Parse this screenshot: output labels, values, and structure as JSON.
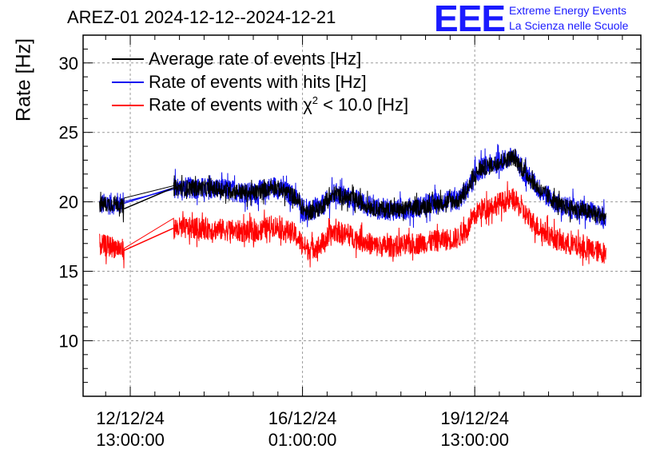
{
  "title": "AREZ-01 2024-12-12--2024-12-21",
  "logo": {
    "text": "EEE",
    "line1": "Extreme Energy Events",
    "line2": "La Scienza nelle Scuole",
    "color": "#1a1aff"
  },
  "chart_data": {
    "type": "line",
    "ylabel": "Rate [Hz]",
    "xlabel": "",
    "ylim": [
      6,
      32
    ],
    "yticks": [
      10,
      15,
      20,
      25,
      30
    ],
    "x_range_hours": [
      -23,
      249
    ],
    "x_major_ticks": [
      {
        "hours": 0,
        "label_date": "12/12/24",
        "label_time": "13:00:00"
      },
      {
        "hours": 84,
        "label_date": "16/12/24",
        "label_time": "01:00:00"
      },
      {
        "hours": 168,
        "label_date": "19/12/24",
        "label_time": "13:00:00"
      }
    ],
    "x_origin": "2024-12-12 13:00:00",
    "grid": true,
    "legend_position": "top-left",
    "series": [
      {
        "name": "Average rate of events [Hz]",
        "color": "#000000",
        "noise": 0.6,
        "points": [
          [
            -15,
            19.8
          ],
          [
            -6,
            19.9
          ],
          [
            -3,
            19.5
          ],
          [
            21,
            21.0
          ],
          [
            30,
            21.0
          ],
          [
            45,
            20.9
          ],
          [
            60,
            20.6
          ],
          [
            70,
            21.1
          ],
          [
            80,
            20.4
          ],
          [
            86,
            19.2
          ],
          [
            92,
            19.5
          ],
          [
            100,
            20.6
          ],
          [
            110,
            20.1
          ],
          [
            120,
            19.5
          ],
          [
            130,
            19.4
          ],
          [
            140,
            19.6
          ],
          [
            150,
            19.9
          ],
          [
            160,
            20.1
          ],
          [
            165,
            21.0
          ],
          [
            170,
            22.3
          ],
          [
            180,
            22.9
          ],
          [
            187,
            23.2
          ],
          [
            192,
            22.2
          ],
          [
            200,
            20.8
          ],
          [
            210,
            19.7
          ],
          [
            220,
            19.4
          ],
          [
            232,
            18.9
          ]
        ]
      },
      {
        "name": "Rate of events with hits [Hz]",
        "color": "#1010f0",
        "noise": 0.8,
        "points": [
          [
            -15,
            19.8
          ],
          [
            -6,
            19.9
          ],
          [
            -3,
            19.9
          ],
          [
            21,
            21.0
          ],
          [
            30,
            21.0
          ],
          [
            45,
            20.9
          ],
          [
            60,
            20.6
          ],
          [
            70,
            21.1
          ],
          [
            80,
            20.4
          ],
          [
            86,
            19.2
          ],
          [
            92,
            19.5
          ],
          [
            100,
            20.6
          ],
          [
            110,
            20.1
          ],
          [
            120,
            19.5
          ],
          [
            130,
            19.4
          ],
          [
            140,
            19.6
          ],
          [
            150,
            19.9
          ],
          [
            160,
            20.1
          ],
          [
            165,
            21.0
          ],
          [
            170,
            22.3
          ],
          [
            180,
            22.9
          ],
          [
            187,
            23.2
          ],
          [
            192,
            22.2
          ],
          [
            200,
            20.8
          ],
          [
            210,
            19.7
          ],
          [
            220,
            19.4
          ],
          [
            232,
            18.9
          ]
        ]
      },
      {
        "name": "Rate of events with χ² < 10.0 [Hz]",
        "color": "#ff0000",
        "noise": 0.8,
        "points": [
          [
            -15,
            16.9
          ],
          [
            -6,
            16.7
          ],
          [
            -3,
            16.5
          ],
          [
            21,
            18.1
          ],
          [
            30,
            18.1
          ],
          [
            45,
            18.0
          ],
          [
            60,
            17.8
          ],
          [
            70,
            18.3
          ],
          [
            80,
            17.7
          ],
          [
            86,
            16.6
          ],
          [
            92,
            16.8
          ],
          [
            100,
            17.9
          ],
          [
            110,
            17.4
          ],
          [
            120,
            16.8
          ],
          [
            130,
            16.8
          ],
          [
            140,
            17.0
          ],
          [
            150,
            17.2
          ],
          [
            160,
            17.4
          ],
          [
            165,
            18.2
          ],
          [
            170,
            19.4
          ],
          [
            180,
            19.9
          ],
          [
            187,
            20.2
          ],
          [
            192,
            19.2
          ],
          [
            200,
            18.0
          ],
          [
            210,
            17.1
          ],
          [
            220,
            16.7
          ],
          [
            232,
            16.3
          ]
        ]
      }
    ],
    "gap_hours": [
      -3,
      21
    ]
  },
  "legend": {
    "items": [
      {
        "label": "Average rate of events [Hz]",
        "color": "#000000"
      },
      {
        "label_pre": "Rate of events with hits [Hz]",
        "color": "#1010f0"
      },
      {
        "label_pre": "Rate of events with χ",
        "label_sup": "2",
        "label_post": " < 10.0 [Hz]",
        "color": "#ff0000"
      }
    ]
  }
}
